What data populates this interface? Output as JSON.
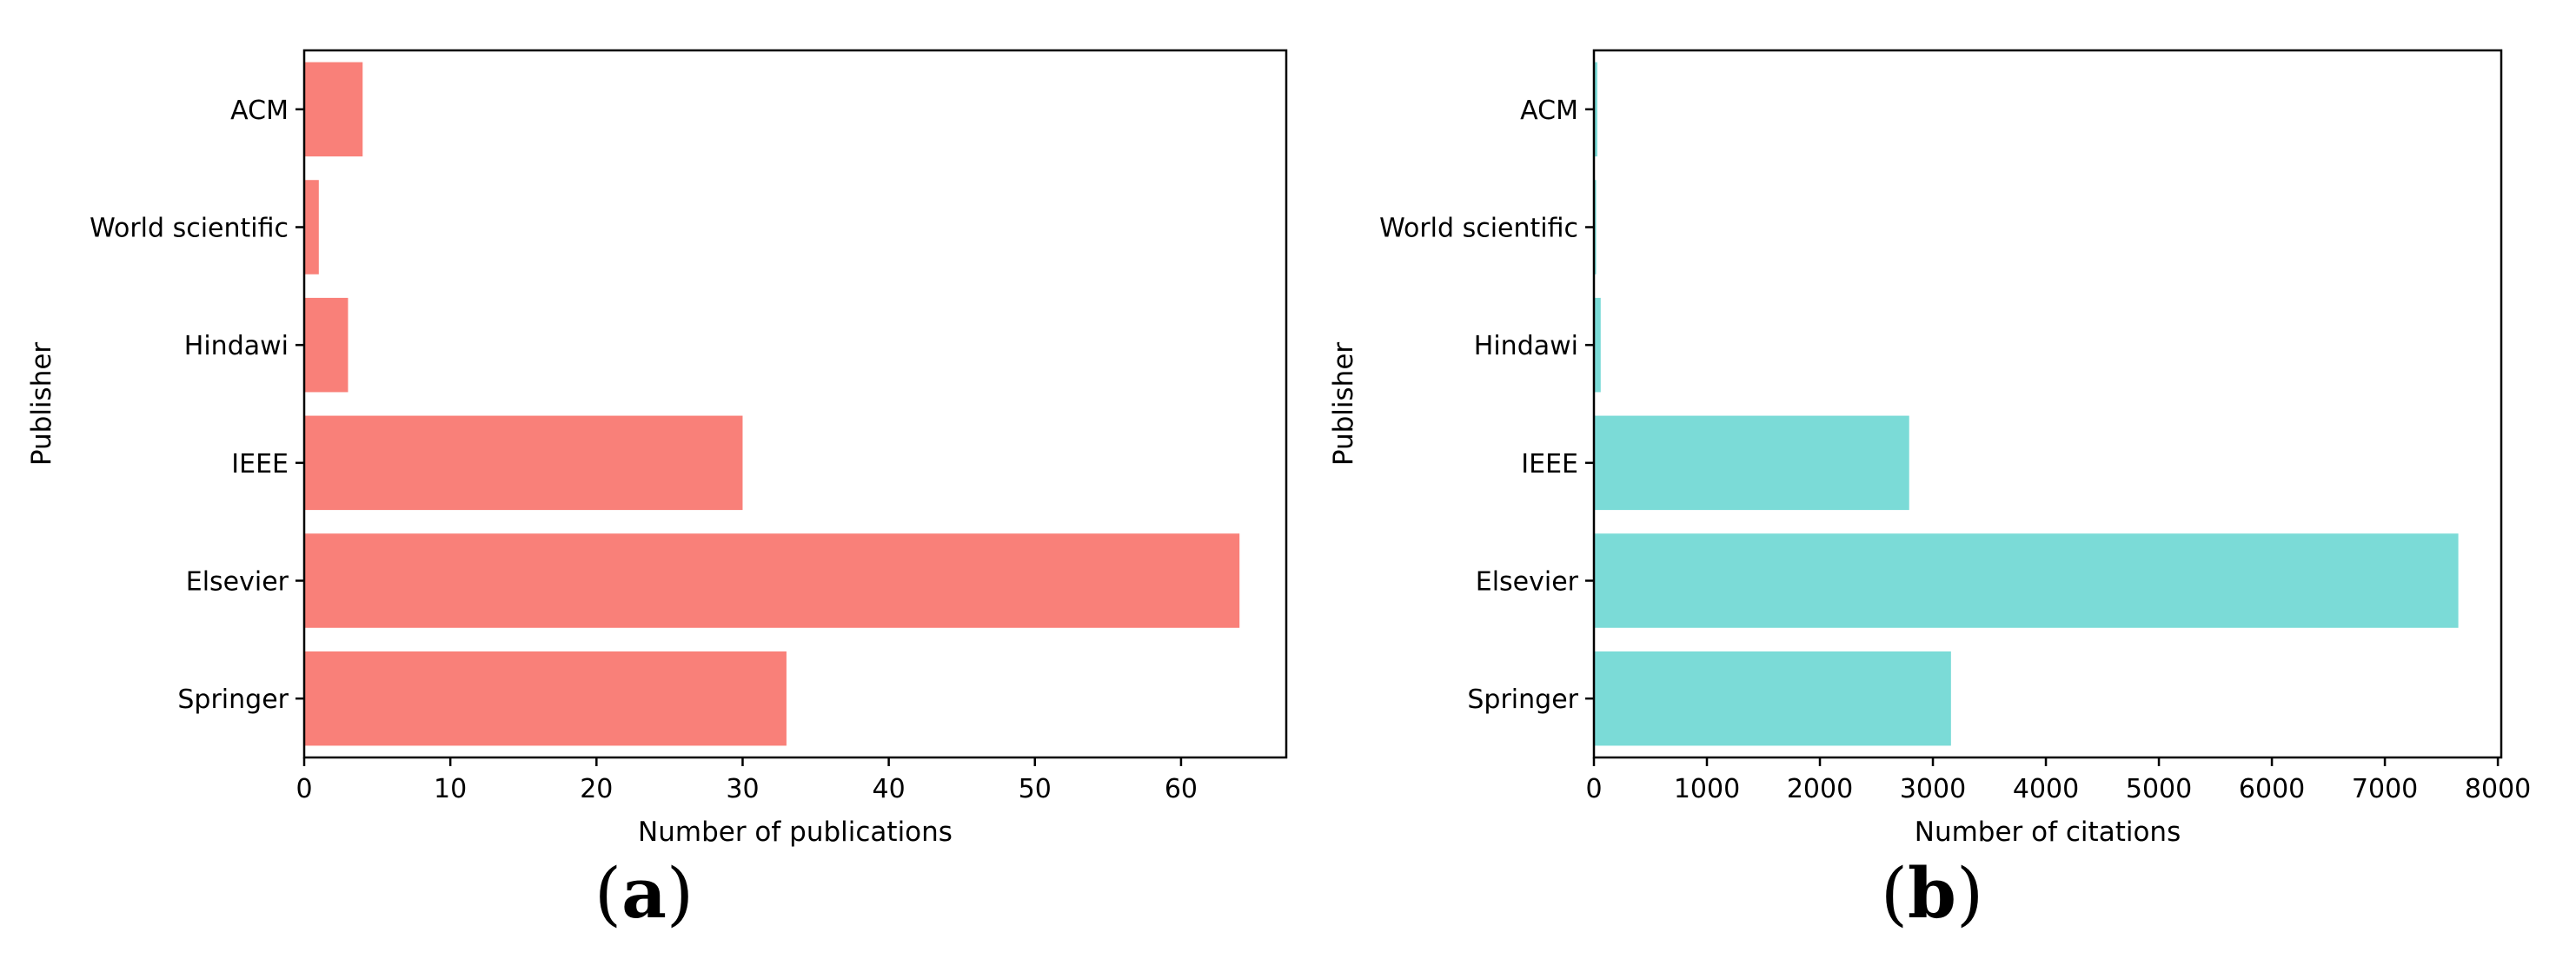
{
  "figure": {
    "background": "#ffffff",
    "description": "Two horizontal bar charts of publisher statistics"
  },
  "colors": {
    "publications_bar": "#F98079",
    "citations_bar": "#7BDBD7",
    "axis": "#000000",
    "text": "#000000"
  },
  "chart_data": [
    {
      "id": "publications",
      "type": "bar",
      "orientation": "horizontal",
      "title": "",
      "categories_top_to_bottom": [
        "ACM",
        "World scientific",
        "Hindawi",
        "IEEE",
        "Elsevier",
        "Springer"
      ],
      "values": [
        4,
        1,
        3,
        30,
        64,
        33
      ],
      "xlabel": "Number of publications",
      "ylabel": "Publisher",
      "xticks": [
        0,
        10,
        20,
        30,
        40,
        50,
        60
      ],
      "xlim": [
        0,
        67.2
      ],
      "grid": false,
      "legend": "none",
      "bar_color": "#F98079",
      "caption_prefix": "(",
      "caption_letter": "a",
      "caption_suffix": ")"
    },
    {
      "id": "citations",
      "type": "bar",
      "orientation": "horizontal",
      "title": "",
      "categories_top_to_bottom": [
        "ACM",
        "World scientific",
        "Hindawi",
        "IEEE",
        "Elsevier",
        "Springer"
      ],
      "values": [
        30,
        20,
        60,
        2790,
        7650,
        3160
      ],
      "xlabel": "Number of citations",
      "ylabel": "Publisher",
      "xticks": [
        0,
        1000,
        2000,
        3000,
        4000,
        5000,
        6000,
        7000,
        8000
      ],
      "xlim": [
        0,
        8030
      ],
      "grid": false,
      "legend": "none",
      "bar_color": "#7BDBD7",
      "caption_prefix": "(",
      "caption_letter": "b",
      "caption_suffix": ")"
    }
  ]
}
